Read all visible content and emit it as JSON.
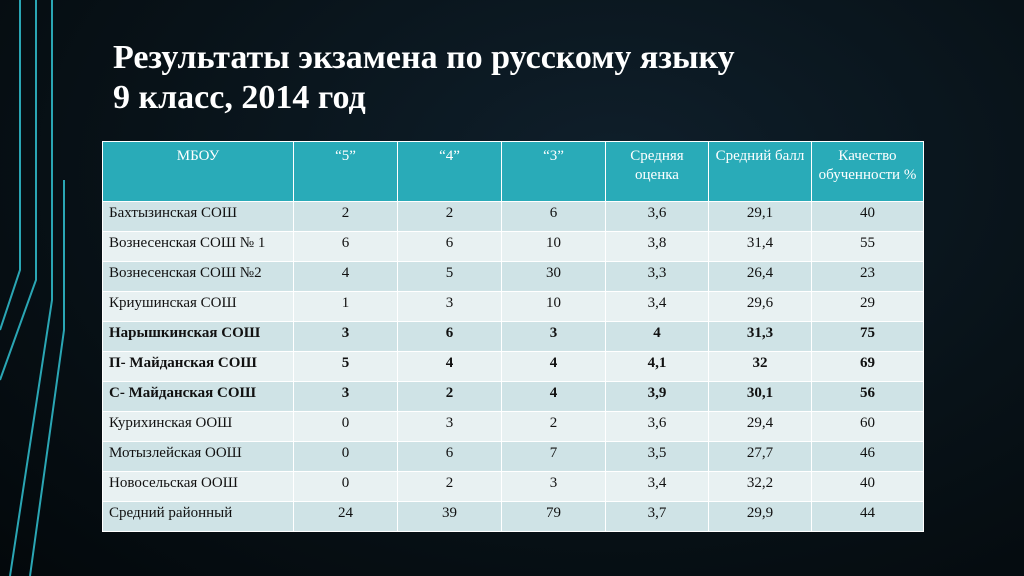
{
  "title": {
    "line1": "Результаты экзамена по русскому языку",
    "line2": "9 класс, 2014 год"
  },
  "table": {
    "headers": [
      "МБОУ",
      "“5”",
      "“4”",
      "“3”",
      "Средняя оценка",
      "Средний балл",
      "Качество обученности %"
    ],
    "rows": [
      {
        "school": "Бахтызинская СОШ",
        "five": "2",
        "four": "2",
        "three": "6",
        "avg_grade": "3,6",
        "avg_score": "29,1",
        "quality": "40",
        "bold": false
      },
      {
        "school": "Вознесенская СОШ № 1",
        "five": "6",
        "four": "6",
        "three": "10",
        "avg_grade": "3,8",
        "avg_score": "31,4",
        "quality": "55",
        "bold": false
      },
      {
        "school": "Вознесенская СОШ  №2",
        "five": "4",
        "four": "5",
        "three": "30",
        "avg_grade": "3,3",
        "avg_score": "26,4",
        "quality": "23",
        "bold": false
      },
      {
        "school": "Криушинская СОШ",
        "five": "1",
        "four": "3",
        "three": "10",
        "avg_grade": "3,4",
        "avg_score": "29,6",
        "quality": "29",
        "bold": false
      },
      {
        "school": "Нарышкинская СОШ",
        "five": "3",
        "four": "6",
        "three": "3",
        "avg_grade": "4",
        "avg_score": "31,3",
        "quality": "75",
        "bold": true
      },
      {
        "school": "П- Майданская СОШ",
        "five": "5",
        "four": "4",
        "three": "4",
        "avg_grade": "4,1",
        "avg_score": "32",
        "quality": "69",
        "bold": true
      },
      {
        "school": "С- Майданская СОШ",
        "five": "3",
        "four": "2",
        "three": "4",
        "avg_grade": "3,9",
        "avg_score": "30,1",
        "quality": "56",
        "bold": true
      },
      {
        "school": "Курихинская ООШ",
        "five": "0",
        "four": "3",
        "three": "2",
        "avg_grade": "3,6",
        "avg_score": "29,4",
        "quality": "60",
        "bold": false
      },
      {
        "school": "Мотызлейская ООШ",
        "five": "0",
        "four": "6",
        "three": "7",
        "avg_grade": "3,5",
        "avg_score": "27,7",
        "quality": "46",
        "bold": false
      },
      {
        "school": "Новосельская ООШ",
        "five": "0",
        "four": "2",
        "three": "3",
        "avg_grade": "3,4",
        "avg_score": "32,2",
        "quality": "40",
        "bold": false
      },
      {
        "school": "Средний районный",
        "five": "24",
        "four": "39",
        "three": "79",
        "avg_grade": "3,7",
        "avg_score": "29,9",
        "quality": "44",
        "bold": false
      }
    ]
  },
  "colors": {
    "header_bg": "#29abb8",
    "row_odd": "#cfe3e6",
    "row_even": "#e8f1f2",
    "accent_lines": "#2aa6b4"
  }
}
